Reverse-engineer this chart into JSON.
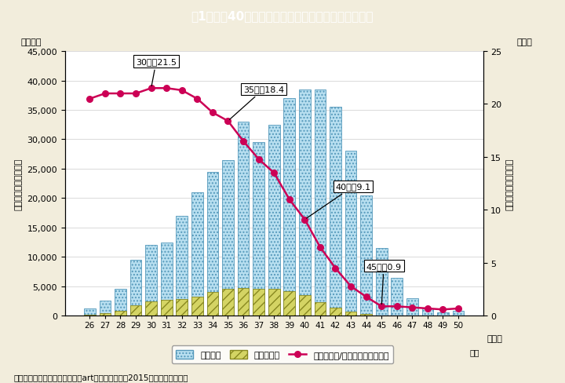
{
  "title": "I −特−40図　体外受精における年齢と生産分娩率",
  "title_display": "あ1－特－40図　体外受精における年齢と生産分娩率",
  "ages": [
    26,
    27,
    28,
    29,
    30,
    31,
    32,
    33,
    34,
    35,
    36,
    37,
    38,
    39,
    40,
    41,
    42,
    43,
    44,
    45,
    46,
    47,
    48,
    49,
    50
  ],
  "total_treatments": [
    1300,
    2600,
    4600,
    9500,
    12000,
    12500,
    17000,
    21000,
    24500,
    26500,
    33000,
    29500,
    32500,
    37000,
    38500,
    38500,
    35500,
    28000,
    20500,
    11500,
    6500,
    3000,
    1200,
    600,
    800
  ],
  "live_births": [
    150,
    450,
    800,
    1800,
    2500,
    2700,
    2800,
    3200,
    4000,
    4600,
    4700,
    4600,
    4600,
    4200,
    3500,
    2300,
    1400,
    700,
    300,
    100,
    100,
    50,
    50,
    50,
    100
  ],
  "rate": [
    20.5,
    21.0,
    21.0,
    21.0,
    21.5,
    21.5,
    21.3,
    20.5,
    19.2,
    18.4,
    16.5,
    14.8,
    13.5,
    11.0,
    9.1,
    6.5,
    4.5,
    2.8,
    1.8,
    0.9,
    0.9,
    0.8,
    0.7,
    0.6,
    0.7
  ],
  "bar_color_total": "#b8dff0",
  "bar_color_births": "#d4d464",
  "line_color": "#cc0055",
  "title_bg": "#29b6cc",
  "bg_color": "#f2eddc",
  "plot_bg": "#ffffff",
  "left_label_top": "（件数）",
  "right_label_top": "（％）",
  "ylabel_left": "総治療数・生産分娩数",
  "ylabel_right": "生産分娩数／総治療数",
  "xlabel_unit": "（歳）",
  "xlabel_last": "以上",
  "ylim_left": [
    0,
    45000
  ],
  "ylim_right": [
    0,
    25
  ],
  "yticks_left": [
    0,
    5000,
    10000,
    15000,
    20000,
    25000,
    30000,
    35000,
    40000,
    45000
  ],
  "yticks_right": [
    0,
    5,
    10,
    15,
    20,
    25
  ],
  "legend_labels": [
    "総治療数",
    "生産分娩数",
    "生産分娩数/総治療数（右目盛）"
  ],
  "footnote": "（備考）日本産科婦人科学会『artデータブック（2015年）』より作成。",
  "ann_30_label": "30歳：21.5",
  "ann_35_label": "35歳：18.4",
  "ann_40_label": "40歳：9.1",
  "ann_45_label": "45歳：0.9"
}
